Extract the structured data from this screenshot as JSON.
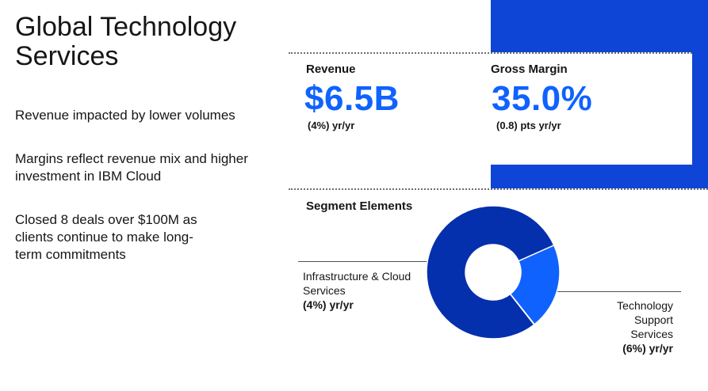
{
  "page": {
    "title": "Global Technology Services",
    "bullets": [
      "Revenue impacted by lower volumes",
      "Margins reflect revenue mix and higher investment in IBM Cloud",
      "Closed 8 deals over $100M as clients continue to make long-term commitments"
    ]
  },
  "metrics": {
    "revenue": {
      "label": "Revenue",
      "value": "$6.5B",
      "change": "(4%) yr/yr"
    },
    "gross_margin": {
      "label": "Gross Margin",
      "value": "35.0%",
      "change": "(0.8) pts yr/yr"
    }
  },
  "segments": {
    "title": "Segment Elements",
    "items": [
      {
        "name": "Infrastructure & Cloud Services",
        "change": "(4%) yr/yr",
        "share": 0.79,
        "color": "#0530ad"
      },
      {
        "name": "Technology Support Services",
        "change": "(6%) yr/yr",
        "share": 0.21,
        "color": "#0f62fe"
      }
    ]
  },
  "colors": {
    "band": "#0f45d6",
    "accent": "#0f62fe"
  }
}
